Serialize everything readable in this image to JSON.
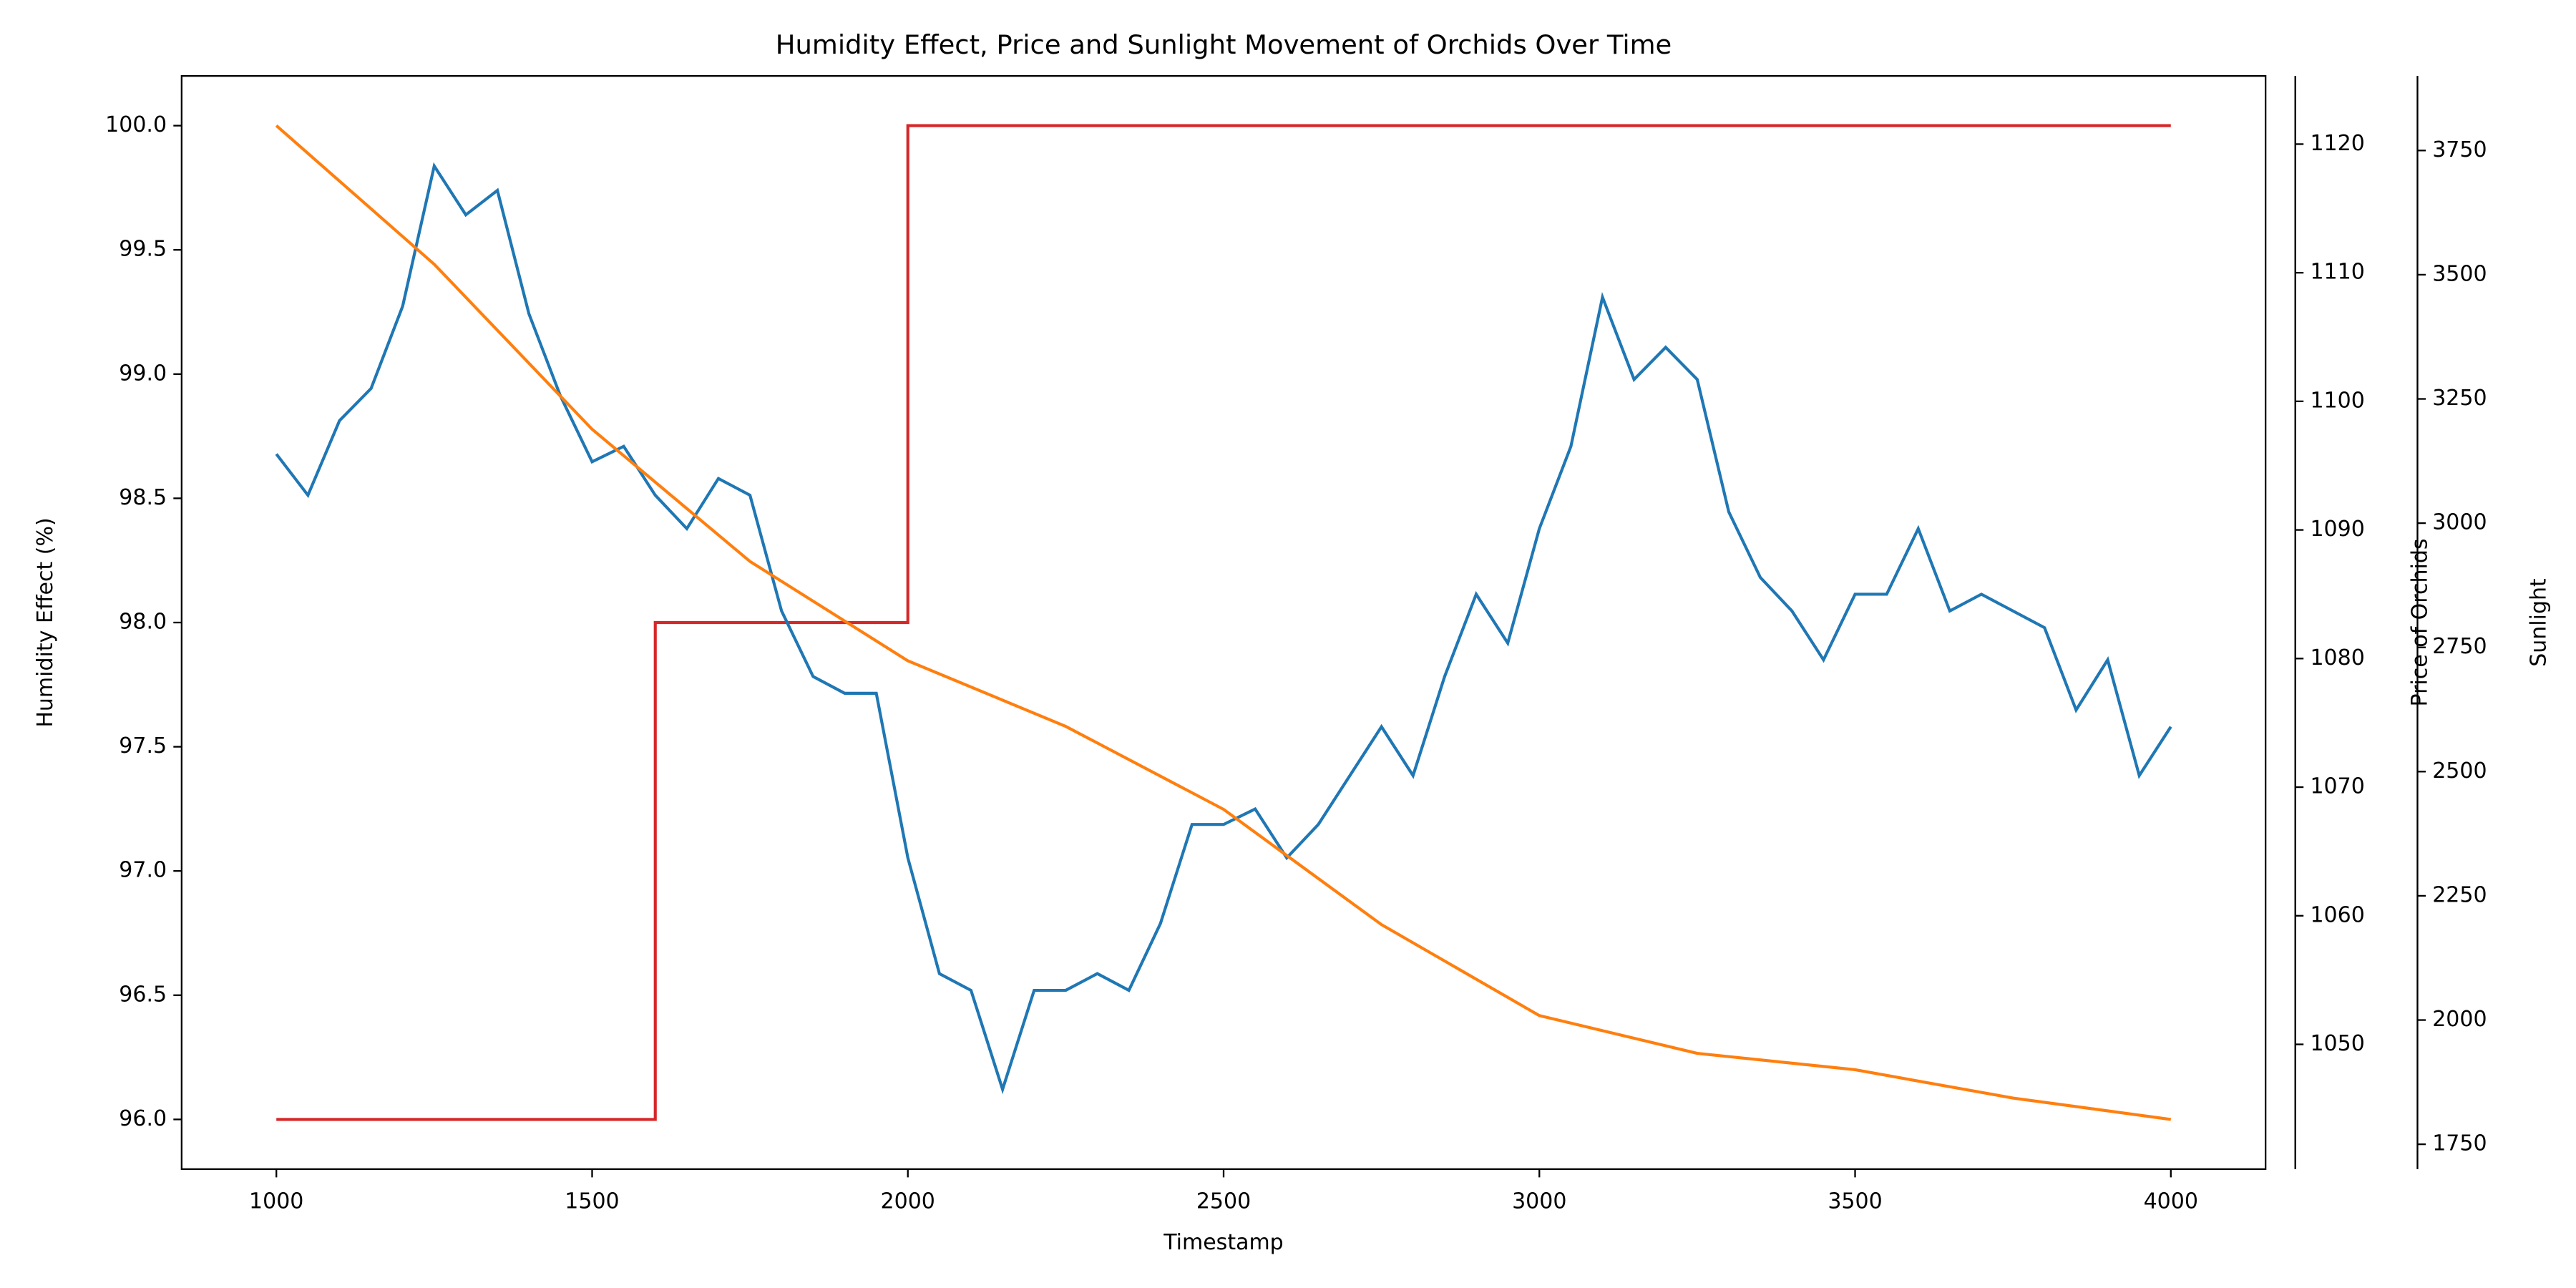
{
  "chart_data": {
    "type": "line",
    "title": "Humidity Effect, Price and Sunlight Movement of Orchids Over Time",
    "xlabel": "Timestamp",
    "ylabel": "Humidity Effect (%)",
    "y2label": "Price of Orchids",
    "y3label": "Sunlight",
    "xlim": [
      850,
      4150
    ],
    "xticks": [
      1000,
      1500,
      2000,
      2500,
      3000,
      3500,
      4000
    ],
    "ylim": [
      95.8,
      100.2
    ],
    "yticks": [
      {
        "value": 96,
        "label": "96.0"
      },
      {
        "value": 96.5,
        "label": "96.5"
      },
      {
        "value": 97,
        "label": "97.0"
      },
      {
        "value": 97.5,
        "label": "97.5"
      },
      {
        "value": 98,
        "label": "98.0"
      },
      {
        "value": 98.5,
        "label": "98.5"
      },
      {
        "value": 99,
        "label": "99.0"
      },
      {
        "value": 99.5,
        "label": "99.5"
      },
      {
        "value": 100,
        "label": "100.0"
      }
    ],
    "y2lim": [
      1040.3,
      1125.3
    ],
    "y2ticks": [
      1050,
      1060,
      1070,
      1080,
      1090,
      1100,
      1110,
      1120
    ],
    "y3lim": [
      1700,
      3900
    ],
    "y3ticks": [
      1750,
      2000,
      2250,
      2500,
      2750,
      3000,
      3250,
      3500,
      3750
    ],
    "series": [
      {
        "axis": "y",
        "color": "#d62728",
        "x": [
          1000,
          1600,
          1600,
          2000,
          2000,
          4000
        ],
        "values": [
          96,
          96,
          98,
          98,
          100,
          100
        ]
      },
      {
        "axis": "y2",
        "color": "#1f77b4",
        "x": [
          1000,
          1050,
          1100,
          1150,
          1200,
          1250,
          1300,
          1350,
          1400,
          1450,
          1500,
          1550,
          1600,
          1650,
          1700,
          1750,
          1800,
          1850,
          1900,
          1950,
          2000,
          2050,
          2100,
          2150,
          2200,
          2250,
          2300,
          2350,
          2400,
          2450,
          2500,
          2550,
          2600,
          2650,
          2700,
          2750,
          2800,
          2850,
          2900,
          2950,
          3000,
          3050,
          3100,
          3150,
          3200,
          3250,
          3300,
          3350,
          3400,
          3450,
          3500,
          3550,
          3600,
          3650,
          3700,
          3750,
          3800,
          3850,
          3900,
          3950,
          4000
        ],
        "values": [
          1095.9,
          1092.7,
          1098.5,
          1101,
          1107.4,
          1118.3,
          1114.5,
          1116.4,
          1106.8,
          1100.4,
          1095.3,
          1096.5,
          1092.7,
          1090.1,
          1094,
          1092.7,
          1083.7,
          1078.6,
          1077.3,
          1077.3,
          1064.5,
          1055.5,
          1054.2,
          1046.5,
          1054.2,
          1054.2,
          1055.5,
          1054.2,
          1059.4,
          1067.1,
          1067.1,
          1068.3,
          1064.5,
          1067.1,
          1070.9,
          1074.7,
          1070.9,
          1078.6,
          1085,
          1081.2,
          1090.1,
          1096.5,
          1108.1,
          1101.7,
          1104.2,
          1101.7,
          1091.4,
          1086.3,
          1083.7,
          1079.9,
          1085,
          1085,
          1090.1,
          1083.7,
          1085,
          1083.7,
          1082.4,
          1076,
          1079.9,
          1070.9,
          1074.7
        ]
      },
      {
        "axis": "y3",
        "color": "#ff7f0e",
        "x": [
          1000,
          1250,
          1500,
          1750,
          2000,
          2250,
          2500,
          2750,
          3000,
          3250,
          3500,
          3750,
          4000
        ],
        "values": [
          3800,
          3521,
          3189,
          2923,
          2723,
          2591,
          2424,
          2192,
          2009,
          1933,
          1900,
          1843,
          1800
        ]
      }
    ]
  }
}
